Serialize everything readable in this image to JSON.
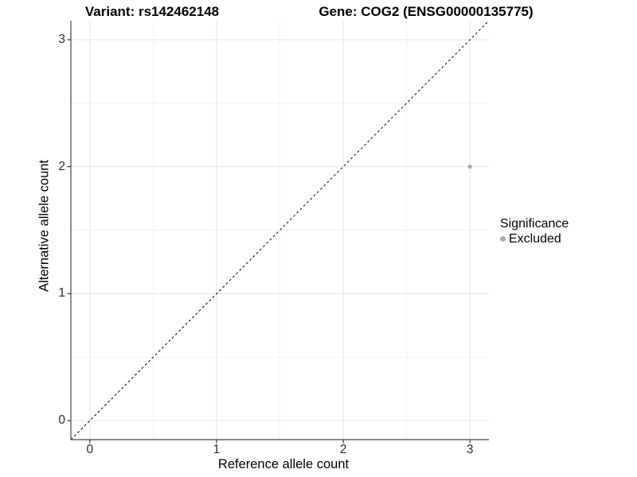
{
  "chart_data": {
    "type": "scatter",
    "title_left": "Variant: rs142462148",
    "title_right": "Gene: COG2 (ENSG00000135775)",
    "xlabel": "Reference allele count",
    "ylabel": "Alternative allele count",
    "xlim": [
      -0.15,
      3.15
    ],
    "ylim": [
      -0.15,
      3.15
    ],
    "xticks": [
      0,
      1,
      2,
      3
    ],
    "yticks": [
      0,
      1,
      2,
      3
    ],
    "xticks_minor": [
      0.5,
      1.5,
      2.5
    ],
    "yticks_minor": [
      0.5,
      1.5,
      2.5
    ],
    "grid": "major+minor",
    "series": [
      {
        "name": "Excluded",
        "color": "#aaaaaa",
        "point_radius": 2.6,
        "points": [
          {
            "x": 3,
            "y": 2
          }
        ]
      }
    ],
    "reference_line": {
      "kind": "identity",
      "style": "dashed",
      "color": "#000000"
    },
    "legend": {
      "title": "Significance",
      "position": "right",
      "items": [
        {
          "label": "Excluded",
          "color": "#aaaaaa"
        }
      ]
    }
  },
  "colors": {
    "grid_major": "#e5e5e5",
    "grid_minor": "#f2f2f2",
    "axis_line": "#444444",
    "tick_mark": "#333333",
    "tick_text": "#2b2b2b"
  }
}
